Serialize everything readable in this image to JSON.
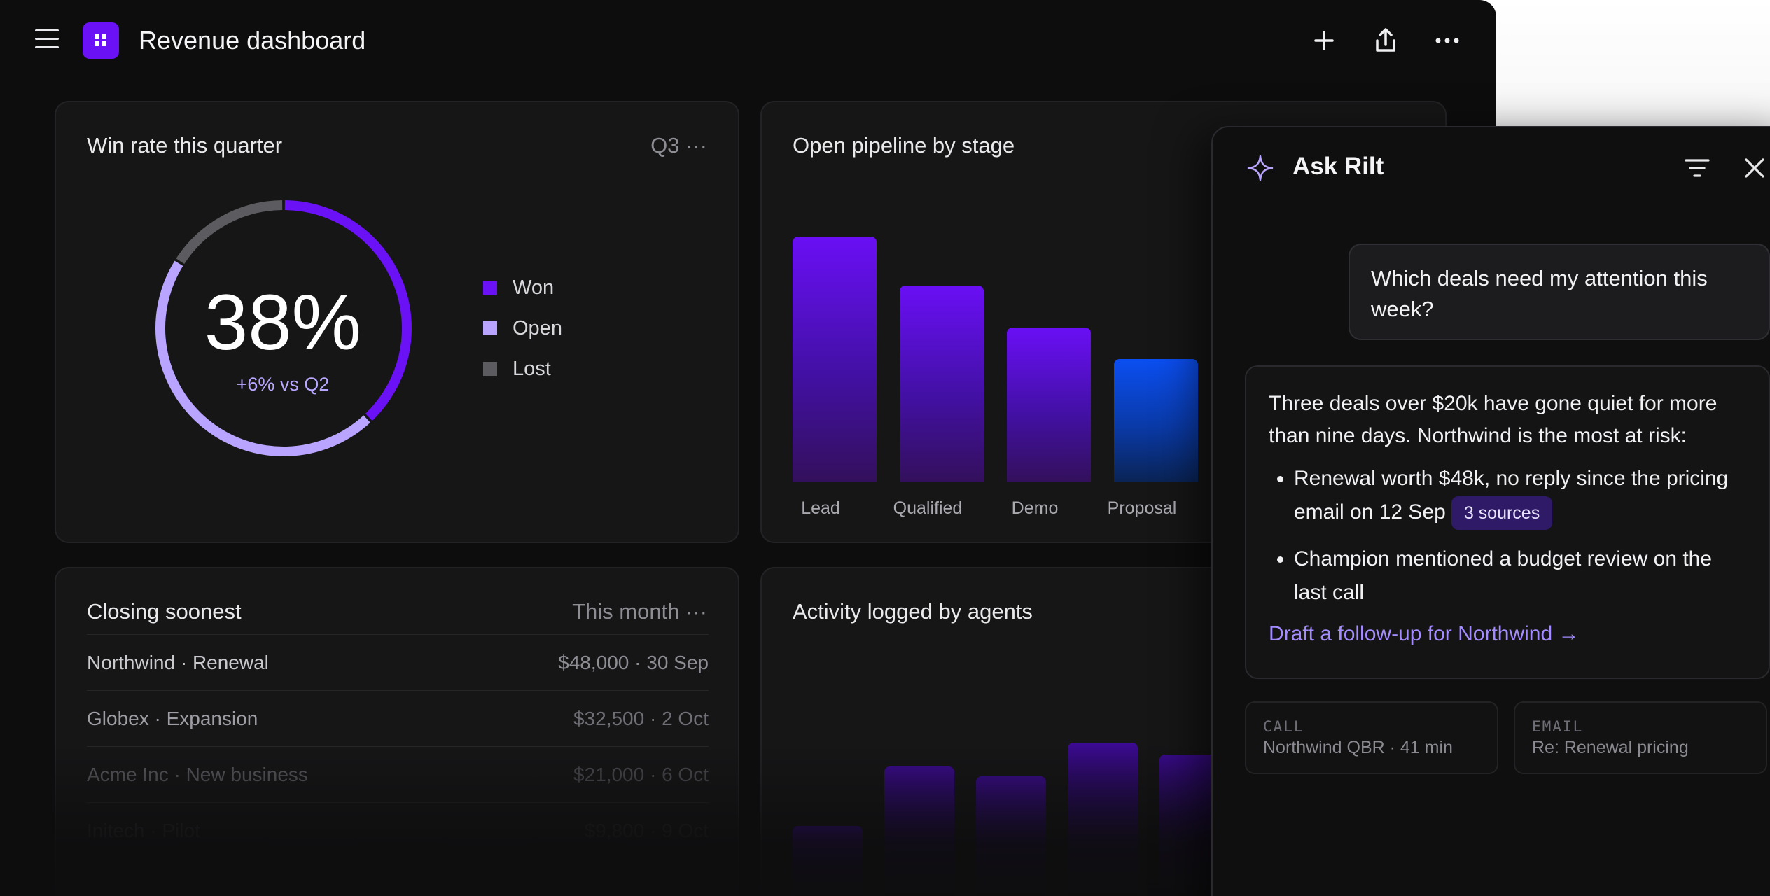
{
  "header": {
    "title": "Revenue dashboard",
    "icons": [
      "menu-icon",
      "app-logo-icon",
      "plus-icon",
      "share-icon",
      "more-icon"
    ]
  },
  "win_rate": {
    "title": "Win rate this quarter",
    "period": "Q3 ···",
    "value": "38%",
    "delta": "+6% vs Q2",
    "legend": [
      {
        "label": "Won",
        "color": "#6a11f5"
      },
      {
        "label": "Open",
        "color": "#b9a5ff"
      },
      {
        "label": "Lost",
        "color": "#5c5c60"
      }
    ],
    "chart_data": {
      "type": "pie",
      "categories": [
        "Won",
        "Open",
        "Lost"
      ],
      "values": [
        38,
        46,
        16
      ]
    }
  },
  "pipeline": {
    "title": "Open pipeline by stage",
    "chart_data": {
      "type": "bar",
      "categories": [
        "Lead",
        "Qualified",
        "Demo",
        "Proposal"
      ],
      "values": [
        100,
        80,
        63,
        50
      ],
      "colors": [
        "#6a0ff5",
        "#6a0ff5",
        "#6a0ff5",
        "#0b4ff2"
      ]
    }
  },
  "closing": {
    "title": "Closing soonest",
    "period": "This month ···",
    "rows": [
      {
        "name": "Northwind · Renewal",
        "detail": "$48,000 · 30 Sep"
      },
      {
        "name": "Globex · Expansion",
        "detail": "$32,500 · 2 Oct"
      },
      {
        "name": "Acme Inc · New business",
        "detail": "$21,000 · 6 Oct"
      },
      {
        "name": "Initech · Pilot",
        "detail": "$9,800 · 9 Oct"
      }
    ]
  },
  "activity": {
    "title": "Activity logged by agents",
    "chart_data": {
      "type": "bar",
      "values": [
        30,
        55,
        51,
        65,
        60
      ]
    }
  },
  "chat": {
    "title": "Ask Rilt",
    "user_message": "Which deals need my attention this week?",
    "answer_intro": "Three deals over $20k have gone quiet for more than nine days. Northwind is the most at risk:",
    "bullet_1": "Renewal worth $48k, no reply since the pricing email on 12 Sep",
    "bullet_1_badge": "3 sources",
    "bullet_2": "Champion mentioned a budget review on the last call",
    "action_link": "Draft a follow-up for Northwind →",
    "sources": [
      {
        "kind": "CALL",
        "title": "Northwind QBR · 41 min"
      },
      {
        "kind": "EMAIL",
        "title": "Re: Renewal pricing"
      }
    ]
  }
}
